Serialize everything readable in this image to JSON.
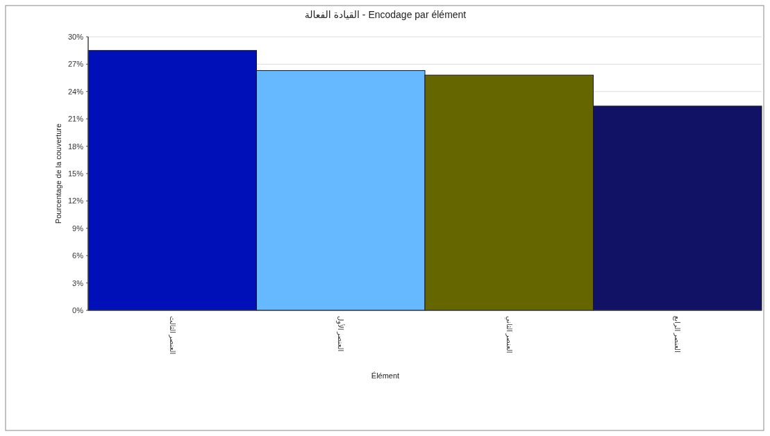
{
  "chart_data": {
    "type": "bar",
    "title": "القيادة الفعالة - Encodage par élément",
    "xlabel": "Élément",
    "ylabel": "Pourcentage de la couverture",
    "categories": [
      "العنصر الثالث",
      "العنصر الأول",
      "العنصر الثاني",
      "العنصر الرابع"
    ],
    "values": [
      28.5,
      26.3,
      25.8,
      22.4
    ],
    "colors": [
      "#0010b8",
      "#66b8ff",
      "#666600",
      "#111166"
    ],
    "ylim": [
      0,
      30
    ],
    "yticks": [
      {
        "value": 0,
        "label": "0%"
      },
      {
        "value": 3,
        "label": "3%"
      },
      {
        "value": 6,
        "label": "6%"
      },
      {
        "value": 9,
        "label": "9%"
      },
      {
        "value": 12,
        "label": "12%"
      },
      {
        "value": 15,
        "label": "15%"
      },
      {
        "value": 18,
        "label": "18%"
      },
      {
        "value": 21,
        "label": "21%"
      },
      {
        "value": 24,
        "label": "24%"
      },
      {
        "value": 27,
        "label": "27%"
      },
      {
        "value": 30,
        "label": "30%"
      }
    ],
    "grid": "y"
  }
}
